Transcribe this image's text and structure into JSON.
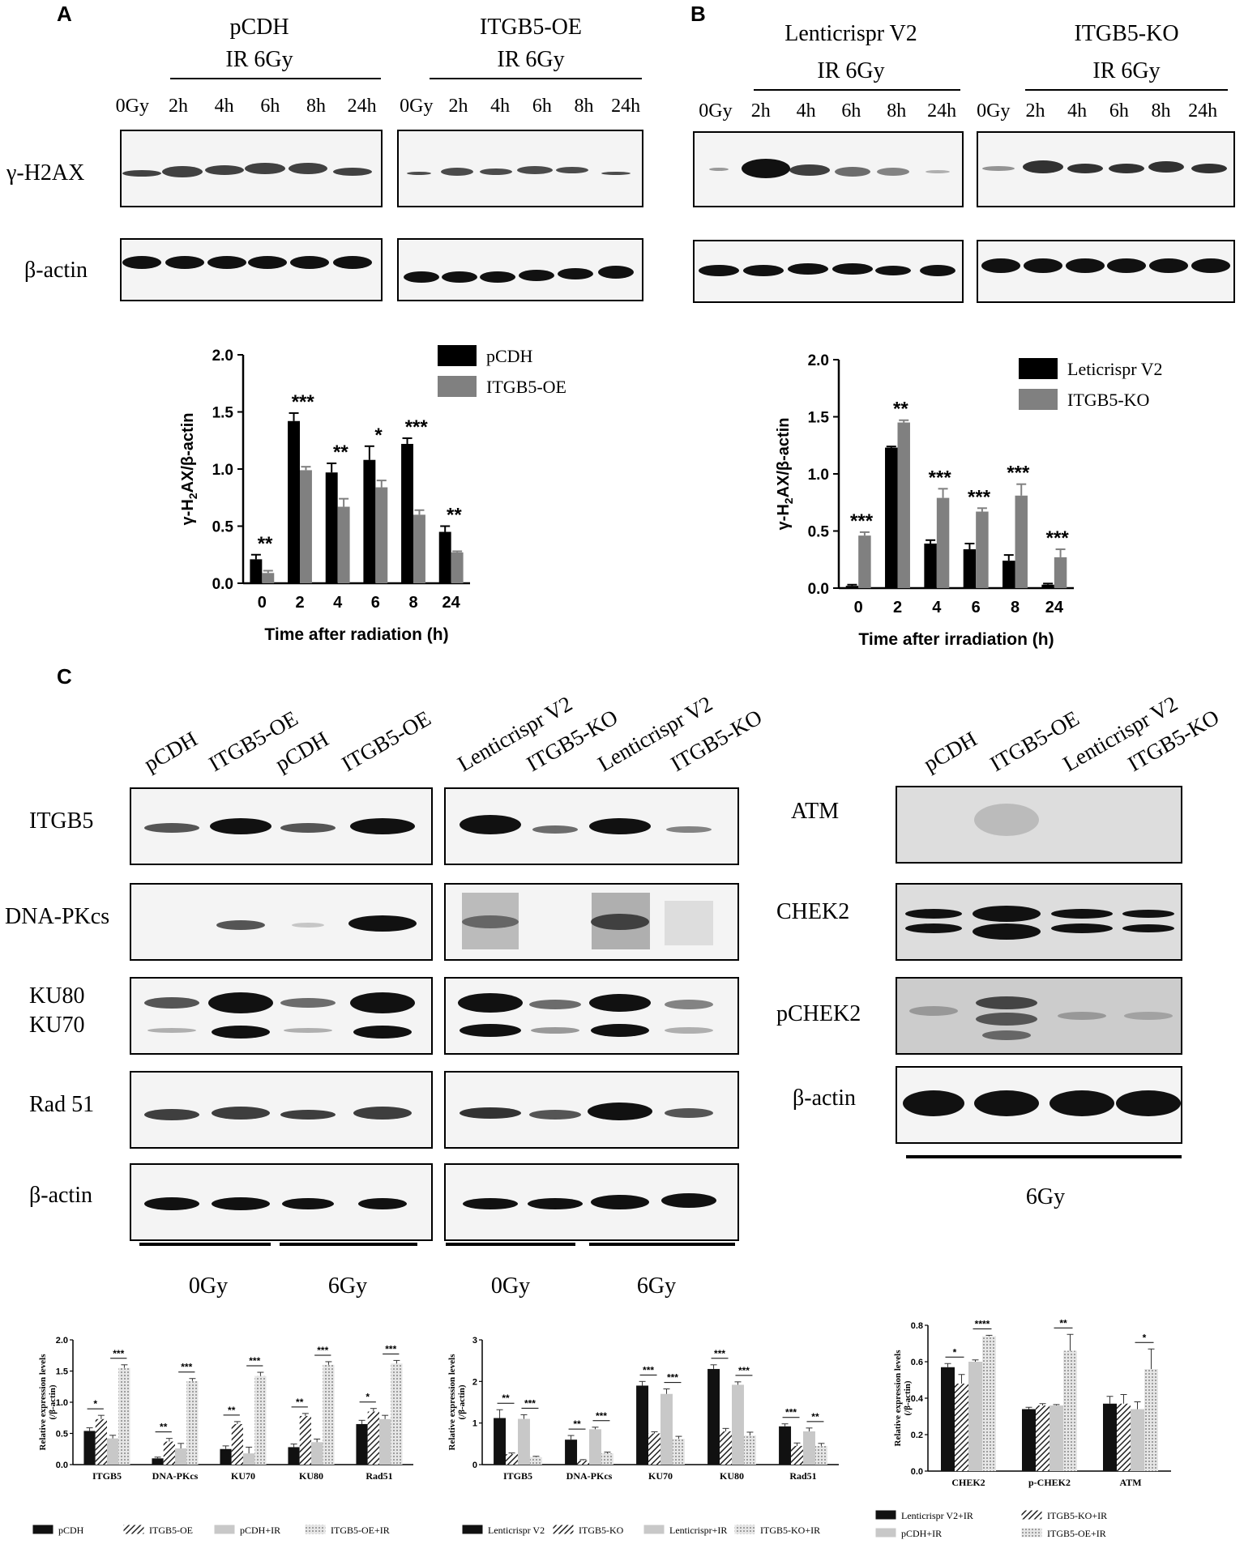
{
  "panels": {
    "A": "A",
    "B": "B",
    "C": "C"
  },
  "panel_a": {
    "group1": {
      "name": "pCDH",
      "treatment": "IR 6Gy"
    },
    "group2": {
      "name": "ITGB5-OE",
      "treatment": "IR 6Gy"
    },
    "lanes1": [
      "0Gy",
      "2h",
      "4h",
      "6h",
      "8h",
      "24h"
    ],
    "lanes2": [
      "0Gy",
      "2h",
      "4h",
      "6h",
      "8h",
      "24h"
    ],
    "rows": [
      "γ-H2AX",
      "β-actin"
    ]
  },
  "panel_b": {
    "group1": {
      "name": "Lenticrispr V2",
      "treatment": "IR 6Gy"
    },
    "group2": {
      "name": "ITGB5-KO",
      "treatment": "IR 6Gy"
    },
    "lanes1": [
      "0Gy",
      "2h",
      "4h",
      "6h",
      "8h",
      "24h"
    ],
    "lanes2": [
      "0Gy",
      "2h",
      "4h",
      "6h",
      "8h",
      "24h"
    ]
  },
  "panel_c": {
    "left_lanes": [
      "pCDH",
      "ITGB5-OE",
      "pCDH",
      "ITGB5-OE"
    ],
    "mid_lanes": [
      "Lenticrispr V2",
      "ITGB5-KO",
      "Lenticrispr V2",
      "ITGB5-KO"
    ],
    "right_lanes": [
      "pCDH",
      "ITGB5-OE",
      "Lenticrispr V2",
      "ITGB5-KO"
    ],
    "rows": [
      "ITGB5",
      "DNA-PKcs",
      "KU80",
      "KU70",
      "Rad 51",
      "β-actin"
    ],
    "right_rows": [
      "ATM",
      "CHEK2",
      "pCHEK2",
      "β-actin"
    ],
    "dose_left": [
      "0Gy",
      "6Gy"
    ],
    "dose_mid": [
      "0Gy",
      "6Gy"
    ],
    "dose_right": "6Gy"
  },
  "chart_data": [
    {
      "type": "bar",
      "categories": [
        "0",
        "2",
        "4",
        "6",
        "8",
        "24"
      ],
      "series": [
        {
          "name": "pCDH",
          "values": [
            0.21,
            1.42,
            0.97,
            1.08,
            1.22,
            0.45
          ],
          "err": [
            0.04,
            0.07,
            0.08,
            0.12,
            0.05,
            0.05
          ],
          "color": "#000000"
        },
        {
          "name": "ITGB5-OE",
          "values": [
            0.09,
            0.99,
            0.67,
            0.84,
            0.6,
            0.27
          ],
          "err": [
            0.02,
            0.03,
            0.07,
            0.06,
            0.04,
            0.01
          ],
          "color": "#808080"
        }
      ],
      "sig": [
        "**",
        "***",
        "**",
        "*",
        "***",
        "**"
      ],
      "xlabel": "Time after radiation (h)",
      "ylabel_parts": [
        "γ-H",
        "2",
        "AX/β-actin"
      ],
      "ylim": [
        0,
        2.0
      ],
      "yticks": [
        "0.0",
        "0.5",
        "1.0",
        "1.5",
        "2.0"
      ]
    },
    {
      "type": "bar",
      "categories": [
        "0",
        "2",
        "4",
        "6",
        "8",
        "24"
      ],
      "series": [
        {
          "name": "Leticrispr V2",
          "values": [
            0.02,
            1.23,
            0.39,
            0.34,
            0.24,
            0.03
          ],
          "err": [
            0.01,
            0.01,
            0.03,
            0.05,
            0.05,
            0.01
          ],
          "color": "#000000"
        },
        {
          "name": "ITGB5-KO",
          "values": [
            0.46,
            1.45,
            0.79,
            0.67,
            0.81,
            0.27
          ],
          "err": [
            0.03,
            0.02,
            0.08,
            0.03,
            0.1,
            0.07
          ],
          "color": "#808080"
        }
      ],
      "sig": [
        "***",
        "**",
        "***",
        "***",
        "***",
        "***"
      ],
      "xlabel": "Time after irradiation (h)",
      "ylabel_parts": [
        "γ-H",
        "2",
        "AX/β-actin"
      ],
      "ylim": [
        0,
        2.0
      ],
      "yticks": [
        "0.0",
        "0.5",
        "1.0",
        "1.5",
        "2.0"
      ]
    },
    {
      "type": "bar",
      "categories": [
        "ITGB5",
        "DNA-PKcs",
        "KU70",
        "KU80",
        "Rad51"
      ],
      "series": [
        {
          "name": "pCDH",
          "values": [
            0.54,
            0.1,
            0.25,
            0.28,
            0.65
          ],
          "err": [
            0.05,
            0.02,
            0.05,
            0.05,
            0.06
          ]
        },
        {
          "name": "ITGB5-OE",
          "values": [
            0.73,
            0.37,
            0.65,
            0.78,
            0.85
          ],
          "err": [
            0.06,
            0.05,
            0.04,
            0.04,
            0.05
          ]
        },
        {
          "name": "pCDH+IR",
          "values": [
            0.42,
            0.26,
            0.18,
            0.36,
            0.73
          ],
          "err": [
            0.05,
            0.08,
            0.1,
            0.05,
            0.06
          ]
        },
        {
          "name": "ITGB5-OE+IR",
          "values": [
            1.55,
            1.34,
            1.42,
            1.6,
            1.62
          ],
          "err": [
            0.05,
            0.04,
            0.06,
            0.05,
            0.05
          ]
        }
      ],
      "sig": [
        [
          "*",
          "***"
        ],
        [
          "**",
          "***"
        ],
        [
          "**",
          "***"
        ],
        [
          "**",
          "***"
        ],
        [
          "*",
          "***"
        ]
      ],
      "ylabel": "Relative expression levels",
      "ylabel2": "(/β-actin)",
      "ylim": [
        0,
        2.0
      ],
      "yticks": [
        "0.0",
        "0.5",
        "1.0",
        "1.5",
        "2.0"
      ]
    },
    {
      "type": "bar",
      "categories": [
        "ITGB5",
        "DNA-PKcs",
        "KU70",
        "KU80",
        "Rad51"
      ],
      "series": [
        {
          "name": "Lenticrispr V2",
          "values": [
            1.12,
            0.6,
            1.9,
            2.3,
            0.92
          ],
          "err": [
            0.2,
            0.1,
            0.1,
            0.1,
            0.06
          ]
        },
        {
          "name": "ITGB5-KO",
          "values": [
            0.25,
            0.1,
            0.75,
            0.8,
            0.45
          ],
          "err": [
            0.03,
            0.02,
            0.04,
            0.07,
            0.07
          ]
        },
        {
          "name": "Lenticrispr+IR",
          "values": [
            1.1,
            0.85,
            1.7,
            1.92,
            0.8
          ],
          "err": [
            0.1,
            0.05,
            0.12,
            0.07,
            0.08
          ]
        },
        {
          "name": "ITGB5-KO+IR",
          "values": [
            0.18,
            0.27,
            0.62,
            0.7,
            0.45
          ],
          "err": [
            0.02,
            0.03,
            0.06,
            0.08,
            0.06
          ]
        }
      ],
      "sig": [
        [
          "**",
          "***"
        ],
        [
          "**",
          "***"
        ],
        [
          "***",
          "***"
        ],
        [
          "***",
          "***"
        ],
        [
          "***",
          "**"
        ]
      ],
      "ylabel": "Relative expression levels",
      "ylabel2": "(/β-actin)",
      "ylim": [
        0,
        3
      ],
      "yticks": [
        "0",
        "1",
        "2",
        "3"
      ]
    },
    {
      "type": "bar",
      "categories": [
        "CHEK2",
        "p-CHEK2",
        "ATM"
      ],
      "series": [
        {
          "name": "Lenticrispr V2+IR",
          "values": [
            0.57,
            0.34,
            0.37
          ],
          "err": [
            0.02,
            0.01,
            0.04
          ]
        },
        {
          "name": "ITGB5-KO+IR",
          "values": [
            0.48,
            0.36,
            0.37
          ],
          "err": [
            0.05,
            0.01,
            0.05
          ]
        },
        {
          "name": "pCDH+IR",
          "values": [
            0.6,
            0.36,
            0.34
          ],
          "err": [
            0.01,
            0.005,
            0.04
          ]
        },
        {
          "name": "ITGB5-OE+IR",
          "values": [
            0.74,
            0.66,
            0.56
          ],
          "err": [
            0.005,
            0.09,
            0.11
          ]
        }
      ],
      "sig": [
        [
          "*",
          "****"
        ],
        [
          "",
          "**"
        ],
        [
          "",
          "*"
        ]
      ],
      "ylabel": "Relative expression levels",
      "ylabel2": "(/β-actin)",
      "ylim": [
        0,
        0.8
      ],
      "yticks": [
        "0.0",
        "0.2",
        "0.4",
        "0.6",
        "0.8"
      ]
    }
  ]
}
